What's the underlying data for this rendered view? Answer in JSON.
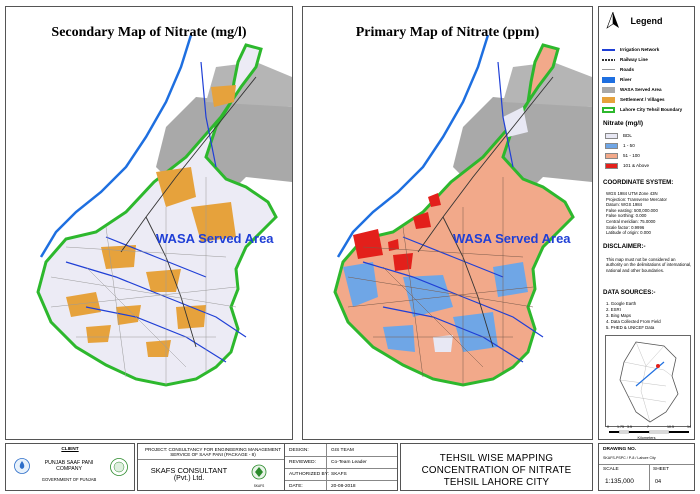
{
  "left_map": {
    "title": "Secondary Map of Nitrate (mg/l)",
    "wasa_label": "WASA Served Area"
  },
  "right_map": {
    "title": "Primary Map of Nitrate (ppm)",
    "wasa_label": "WASA Served Area"
  },
  "legend": {
    "title": "Legend",
    "items": [
      {
        "label": "Irrigation Network",
        "symbol": "line",
        "color": "#1f3fd6"
      },
      {
        "label": "Railway Line",
        "symbol": "rail",
        "color": "#333333"
      },
      {
        "label": "Roads",
        "symbol": "thin-line",
        "color": "#9a9a9a"
      },
      {
        "label": "River",
        "symbol": "fill",
        "color": "#1e6fe0"
      },
      {
        "label": "WASA Served Area",
        "symbol": "fill",
        "color": "#a9a9a9"
      },
      {
        "label": "Settlement / Villages",
        "symbol": "fill",
        "color": "#e6a23c"
      },
      {
        "label": "Lahore City Tehsil Boundary",
        "symbol": "outline",
        "color": "#2db82d"
      }
    ],
    "nitrate_heading": "Nitrate (mg/l)",
    "nitrate_classes": [
      {
        "label": "BDL",
        "color": "#e8e8f4"
      },
      {
        "label": "1 - 50",
        "color": "#6fa6e6"
      },
      {
        "label": "51 - 100",
        "color": "#f2a98a"
      },
      {
        "label": "101 & Above",
        "color": "#e3201b"
      }
    ],
    "coordinate_heading": "COORDINATE SYSTEM:",
    "coordinate_lines": [
      "WGS 1984 UTM Zone 43N",
      "Projection: Transverse Mercator",
      "Datum: WGS 1984",
      "False easting: 500,000.000",
      "False northing: 0.000",
      "Central meridian: 75.0000",
      "Scale factor: 0.9996",
      "Latitude of origin: 0.000"
    ],
    "disclaimer_heading": "DISCLAIMER:-",
    "disclaimer_text": "This map must not be considered an authority on the delimitations of international, national and other boundaries.",
    "sources_heading": "DATA SOURCES:-",
    "sources": [
      "1. Google Earth",
      "2. ESRI",
      "3. Bing Maps",
      "4. Data Collected From Field",
      "5. PHED & UNICEF Data"
    ],
    "scale_ticks": [
      "0",
      "1.75",
      "3.5",
      "7",
      "10.5",
      "14"
    ],
    "scale_unit": "Kilometers"
  },
  "title_block": {
    "client_label": "CLIENT",
    "client_name": "PUNJAB SAAF PANI COMPANY",
    "client_gov": "GOVERNMENT OF PUNJAB",
    "project_text": "PROJECT: CONSULTANCY FOR ENGINEERING MANAGEMENT SERVICE OF SAAF PANI (PACKAGE - 8)",
    "consultant_name": "SKAFS CONSULTANT",
    "consultant_sub": "(Pvt.) Ltd.",
    "consultant_logo_text": "SKAFS",
    "design_label": "DESIGN:",
    "design_value": "GIS TEAM",
    "reviewed_label": "REVIEWED:",
    "reviewed_value": "Co-Team Leader",
    "authorized_label": "AUTHORIZED BY:",
    "authorized_value": "SKAFS",
    "date_label": "DATE:",
    "date_value": "20-08-2018",
    "main_title_lines": [
      "TEHSIL WISE MAPPING",
      "CONCENTRATION OF NITRATE",
      "TEHSIL LAHORE CITY"
    ],
    "drawing_no_label": "DRAWING NO.",
    "drawing_no_value": "SKAFS-PSPC / P-8 / Lahore City",
    "scale_label": "SCALE",
    "scale_value": "1:135,000",
    "sheet_label": "SHEET",
    "sheet_value": "04"
  }
}
